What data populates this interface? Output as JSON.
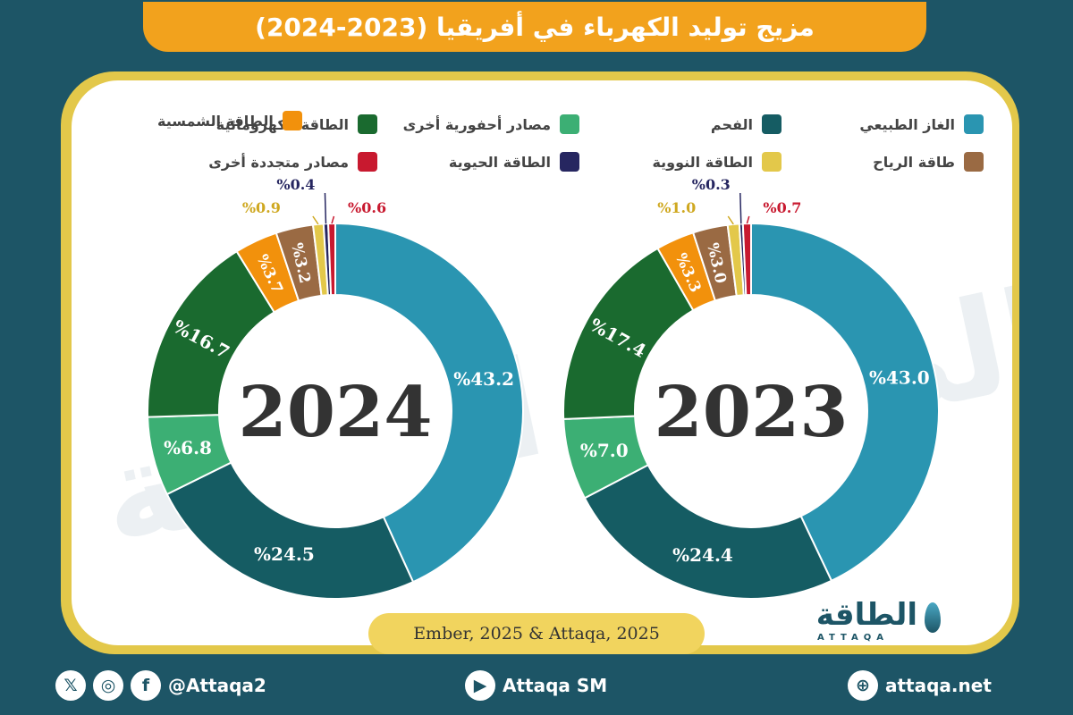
{
  "title": "مزيج توليد الكهرباء في أفريقيا (2023-2024)",
  "legend": [
    {
      "label": "الغاز الطبيعي",
      "color": "#2a95b1"
    },
    {
      "label": "الفحم",
      "color": "#155c63"
    },
    {
      "label": "مصادر أحفورية أخرى",
      "color": "#3caf74"
    },
    {
      "label": "الطاقة الكهرومائية",
      "color": "#1a6a2f"
    },
    {
      "label": "الطاقة الشمسية",
      "color": "#f2910c"
    },
    {
      "label": "طاقة الرياح",
      "color": "#9a6a43"
    },
    {
      "label": "الطاقة النووية",
      "color": "#e3c84a"
    },
    {
      "label": "الطاقة الحيوية",
      "color": "#262660"
    },
    {
      "label": "مصادر متجددة أخرى",
      "color": "#c8192f"
    }
  ],
  "chart_data": [
    {
      "type": "pie",
      "title": "2023",
      "categories": [
        "الغاز الطبيعي",
        "الفحم",
        "مصادر أحفورية أخرى",
        "الطاقة الكهرومائية",
        "الطاقة الشمسية",
        "طاقة الرياح",
        "الطاقة النووية",
        "الطاقة الحيوية",
        "مصادر متجددة أخرى"
      ],
      "values": [
        43.0,
        24.4,
        7.0,
        17.4,
        3.3,
        3.0,
        1.0,
        0.3,
        0.7
      ],
      "labels": [
        "%43.0",
        "%24.4",
        "%7.0",
        "%17.4",
        "%3.3",
        "%3.0",
        "%1.0",
        "%0.3",
        "%0.7"
      ]
    },
    {
      "type": "pie",
      "title": "2024",
      "categories": [
        "الغاز الطبيعي",
        "الفحم",
        "مصادر أحفورية أخرى",
        "الطاقة الكهرومائية",
        "الطاقة الشمسية",
        "طاقة الرياح",
        "الطاقة النووية",
        "الطاقة الحيوية",
        "مصادر متجددة أخرى"
      ],
      "values": [
        43.2,
        24.5,
        6.8,
        16.7,
        3.7,
        3.2,
        0.9,
        0.4,
        0.6
      ],
      "labels": [
        "%43.2",
        "%24.5",
        "%6.8",
        "%16.7",
        "%3.7",
        "%3.2",
        "%0.9",
        "%0.4",
        "%0.6"
      ]
    }
  ],
  "source": "Ember, 2025 & Attaqa, 2025",
  "logo": {
    "arabic": "الطاقة",
    "latin": "ATTAQA"
  },
  "footer": {
    "handle": "@Attaqa2",
    "youtube": "Attaqa SM",
    "website": "attaqa.net"
  }
}
